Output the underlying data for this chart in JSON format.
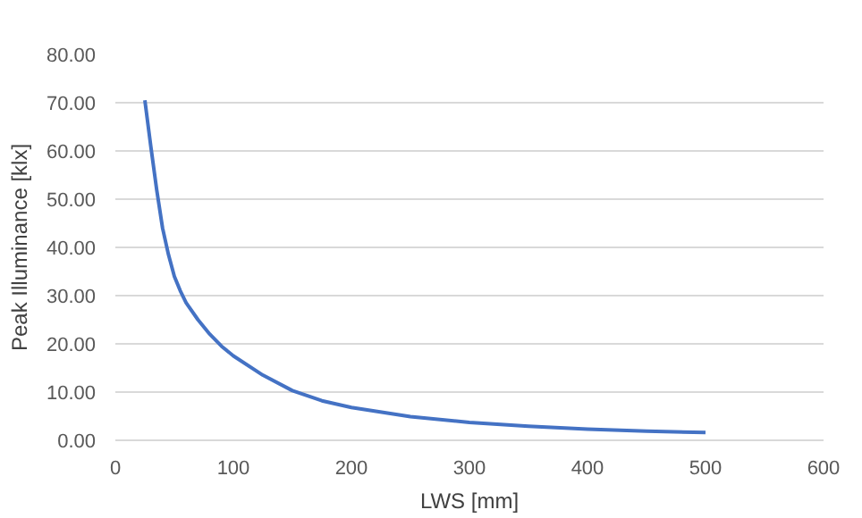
{
  "chart_data": {
    "type": "line",
    "xlabel": "LWS [mm]",
    "ylabel": "Peak Illuminance [klx]",
    "x": [
      25,
      30,
      35,
      40,
      45,
      50,
      55,
      60,
      70,
      80,
      90,
      100,
      125,
      150,
      175,
      200,
      250,
      300,
      350,
      400,
      450,
      500
    ],
    "series": [
      {
        "color": "#4472c4",
        "values": [
          70.5,
          61,
          52,
          44,
          38.5,
          34,
          31,
          28.5,
          25,
          22,
          19.5,
          17.5,
          13.5,
          10.3,
          8.2,
          6.8,
          4.9,
          3.7,
          2.9,
          2.3,
          1.9,
          1.6
        ]
      }
    ],
    "xlim": [
      0,
      600
    ],
    "xticks": [
      0,
      100,
      200,
      300,
      400,
      500,
      600
    ],
    "ylim": [
      0,
      80
    ],
    "yticks": [
      {
        "value": 0,
        "label": "0.00"
      },
      {
        "value": 10,
        "label": "10.00"
      },
      {
        "value": 20,
        "label": "20.00"
      },
      {
        "value": 30,
        "label": "30.00"
      },
      {
        "value": 40,
        "label": "40.00"
      },
      {
        "value": 50,
        "label": "50.00"
      },
      {
        "value": 60,
        "label": "60.00"
      },
      {
        "value": 70,
        "label": "70.00"
      },
      {
        "value": 80,
        "label": "80.00"
      }
    ],
    "grid": "y",
    "marker": "none",
    "line_style": "solid"
  }
}
